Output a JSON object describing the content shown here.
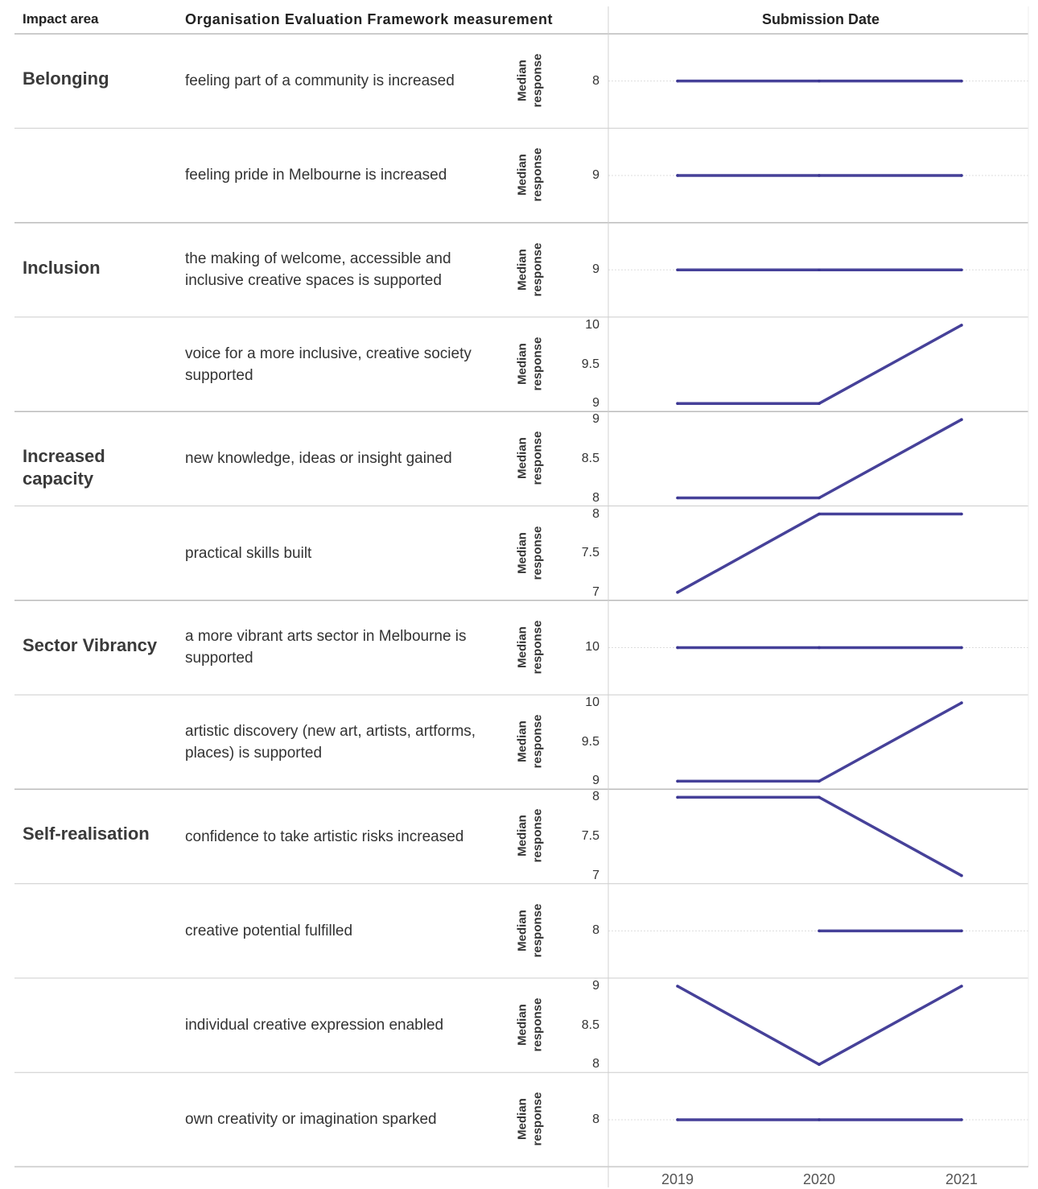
{
  "header": {
    "impact_area": "Impact area",
    "measurement": "Organisation Evaluation Framework measurement",
    "submission_date": "Submission Date"
  },
  "chart_data": {
    "type": "line",
    "x": [
      "2019",
      "2020",
      "2021"
    ],
    "x_label": "Submission Date",
    "y_label": "Median response",
    "line_color": "#3c3793",
    "rows": [
      {
        "impact_area": "Belonging",
        "measure": "feeling part of a community is increased",
        "ylabel": "Median response",
        "ticks": [
          "8"
        ],
        "ylim": [
          7.5,
          8.5
        ],
        "values": [
          8,
          8,
          8
        ]
      },
      {
        "impact_area": "",
        "measure": "feeling pride in Melbourne is increased",
        "ylabel": "Median response",
        "ticks": [
          "9"
        ],
        "ylim": [
          8.5,
          9.5
        ],
        "values": [
          9,
          9,
          9
        ]
      },
      {
        "impact_area": "Inclusion",
        "measure": "the making of welcome, accessible and inclusive creative spaces is supported",
        "ylabel": "Median response",
        "ticks": [
          "9"
        ],
        "ylim": [
          8.5,
          9.5
        ],
        "values": [
          9,
          9,
          9
        ]
      },
      {
        "impact_area": "",
        "measure": "voice for a more inclusive, creative society supported",
        "ylabel": "Median response",
        "ticks": [
          "10",
          "9.5",
          "9"
        ],
        "ylim": [
          9,
          10
        ],
        "values": [
          9,
          9,
          10
        ]
      },
      {
        "impact_area": "Increased capacity",
        "measure": "new knowledge, ideas or insight gained",
        "ylabel": "Median response",
        "ticks": [
          "9",
          "8.5",
          "8"
        ],
        "ylim": [
          8,
          9
        ],
        "values": [
          8,
          8,
          9
        ]
      },
      {
        "impact_area": "",
        "measure": "practical skills built",
        "ylabel": "Median response",
        "ticks": [
          "8",
          "7.5",
          "7"
        ],
        "ylim": [
          7,
          8
        ],
        "values": [
          7,
          8,
          8
        ]
      },
      {
        "impact_area": "Sector Vibrancy",
        "measure": "a more vibrant arts sector in Melbourne is supported",
        "ylabel": "Median response",
        "ticks": [
          "10"
        ],
        "ylim": [
          9.5,
          10.5
        ],
        "values": [
          10,
          10,
          10
        ]
      },
      {
        "impact_area": "",
        "measure": "artistic discovery (new art, artists, artforms, places) is supported",
        "ylabel": "Median response",
        "ticks": [
          "10",
          "9.5",
          "9"
        ],
        "ylim": [
          9,
          10
        ],
        "values": [
          9,
          9,
          10
        ]
      },
      {
        "impact_area": "Self-realisation",
        "measure": "confidence to take artistic risks increased",
        "ylabel": "Median response",
        "ticks": [
          "8",
          "7.5",
          "7"
        ],
        "ylim": [
          7,
          8
        ],
        "values": [
          8,
          8,
          7
        ]
      },
      {
        "impact_area": "",
        "measure": "creative potential fulfilled",
        "ylabel": "Median response",
        "ticks": [
          "8"
        ],
        "ylim": [
          7.5,
          8.5
        ],
        "values": [
          null,
          8,
          8
        ]
      },
      {
        "impact_area": "",
        "measure": "individual creative expression enabled",
        "ylabel": "Median response",
        "ticks": [
          "9",
          "8.5",
          "8"
        ],
        "ylim": [
          8,
          9
        ],
        "values": [
          9,
          8,
          9
        ]
      },
      {
        "impact_area": "",
        "measure": "own creativity or imagination sparked",
        "ylabel": "Median response",
        "ticks": [
          "8"
        ],
        "ylim": [
          7.5,
          8.5
        ],
        "values": [
          8,
          8,
          8
        ]
      }
    ]
  }
}
